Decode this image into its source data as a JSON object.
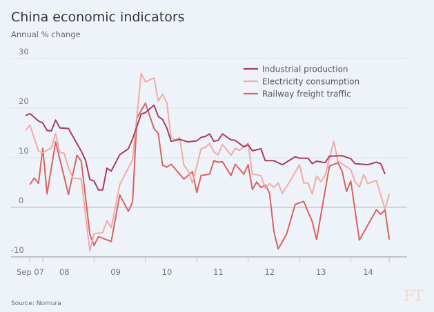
{
  "title": "China economic indicators",
  "subtitle": "Annual % change",
  "source": "Source: Nomura",
  "logo": "FT",
  "colors": {
    "background": "#eef3f9",
    "industrial": "#a83c5e",
    "electricity": "#f2aaa6",
    "railway": "#d9625f",
    "grid": "#c8c8c8",
    "axis": "#c2c2c2"
  },
  "chart_data": {
    "type": "line",
    "title": "China economic indicators",
    "ylabel": "Annual % change",
    "ylim": [
      -10,
      30
    ],
    "yticks": [
      {
        "value": 30,
        "label": "30"
      },
      {
        "value": 20,
        "label": "20"
      },
      {
        "value": 10,
        "label": "10"
      },
      {
        "value": 0,
        "label": "0"
      },
      {
        "value": -10,
        "label": "-10"
      }
    ],
    "xlim": [
      "2007-08",
      "2014-12"
    ],
    "xticks": [
      "2007-10",
      "2008-01",
      "2009-01",
      "2010-01",
      "2011-01",
      "2012-01",
      "2013-01",
      "2014-01",
      "2014-10"
    ],
    "xlabels": [
      {
        "date": "2007-10",
        "label": "Sep 07"
      },
      {
        "date": "2008-07",
        "label": "08"
      },
      {
        "date": "2009-07",
        "label": "09"
      },
      {
        "date": "2010-07",
        "label": "10"
      },
      {
        "date": "2011-07",
        "label": "11"
      },
      {
        "date": "2012-07",
        "label": "12"
      },
      {
        "date": "2013-07",
        "label": "13"
      },
      {
        "date": "2014-06",
        "label": "14"
      }
    ],
    "grid": true,
    "legend_position": "top-right",
    "series": [
      {
        "name": "Industrial production",
        "color": "#a83c5e",
        "points": [
          [
            "2007-09",
            18.5
          ],
          [
            "2007-10",
            18.9
          ],
          [
            "2007-12",
            17.4
          ],
          [
            "2008-01",
            17.0
          ],
          [
            "2008-02",
            15.5
          ],
          [
            "2008-03",
            15.4
          ],
          [
            "2008-04",
            17.6
          ],
          [
            "2008-05",
            16.0
          ],
          [
            "2008-07",
            15.9
          ],
          [
            "2008-10",
            11.3
          ],
          [
            "2008-11",
            9.5
          ],
          [
            "2008-12",
            5.6
          ],
          [
            "2009-01",
            5.3
          ],
          [
            "2009-02",
            3.5
          ],
          [
            "2009-03",
            3.5
          ],
          [
            "2009-04",
            7.9
          ],
          [
            "2009-05",
            7.3
          ],
          [
            "2009-07",
            10.6
          ],
          [
            "2009-09",
            11.8
          ],
          [
            "2009-10",
            13.8
          ],
          [
            "2009-12",
            18.8
          ],
          [
            "2010-01",
            19.1
          ],
          [
            "2010-03",
            20.6
          ],
          [
            "2010-04",
            18.3
          ],
          [
            "2010-05",
            17.7
          ],
          [
            "2010-06",
            16.0
          ],
          [
            "2010-07",
            13.3
          ],
          [
            "2010-09",
            13.7
          ],
          [
            "2010-11",
            13.2
          ],
          [
            "2011-01",
            13.4
          ],
          [
            "2011-02",
            14.1
          ],
          [
            "2011-03",
            14.3
          ],
          [
            "2011-04",
            14.8
          ],
          [
            "2011-05",
            13.3
          ],
          [
            "2011-06",
            13.5
          ],
          [
            "2011-07",
            14.8
          ],
          [
            "2011-09",
            13.6
          ],
          [
            "2011-10",
            13.5
          ],
          [
            "2011-12",
            12.2
          ],
          [
            "2012-01",
            12.6
          ],
          [
            "2012-02",
            11.4
          ],
          [
            "2012-04",
            11.8
          ],
          [
            "2012-05",
            9.4
          ],
          [
            "2012-07",
            9.4
          ],
          [
            "2012-09",
            8.6
          ],
          [
            "2012-12",
            10.2
          ],
          [
            "2013-01",
            9.9
          ],
          [
            "2013-03",
            9.9
          ],
          [
            "2013-04",
            8.8
          ],
          [
            "2013-05",
            9.3
          ],
          [
            "2013-07",
            9.0
          ],
          [
            "2013-08",
            10.3
          ],
          [
            "2013-11",
            10.4
          ],
          [
            "2014-01",
            9.8
          ],
          [
            "2014-02",
            8.8
          ],
          [
            "2014-05",
            8.6
          ],
          [
            "2014-07",
            9.1
          ],
          [
            "2014-08",
            8.8
          ],
          [
            "2014-09",
            6.7
          ]
        ]
      },
      {
        "name": "Electricity consumption",
        "color": "#f2aaa6",
        "points": [
          [
            "2007-09",
            15.5
          ],
          [
            "2007-10",
            16.6
          ],
          [
            "2007-12",
            11.3
          ],
          [
            "2008-01",
            11.0
          ],
          [
            "2008-03",
            12.0
          ],
          [
            "2008-04",
            14.9
          ],
          [
            "2008-05",
            11.1
          ],
          [
            "2008-06",
            10.9
          ],
          [
            "2008-07",
            8.0
          ],
          [
            "2008-08",
            5.9
          ],
          [
            "2008-10",
            5.7
          ],
          [
            "2008-12",
            -8.8
          ],
          [
            "2009-01",
            -5.3
          ],
          [
            "2009-03",
            -5.1
          ],
          [
            "2009-04",
            -2.7
          ],
          [
            "2009-05",
            -4.1
          ],
          [
            "2009-07",
            4.6
          ],
          [
            "2009-10",
            9.6
          ],
          [
            "2009-12",
            27.0
          ],
          [
            "2010-01",
            25.3
          ],
          [
            "2010-03",
            26.1
          ],
          [
            "2010-04",
            21.4
          ],
          [
            "2010-05",
            22.8
          ],
          [
            "2010-06",
            21.1
          ],
          [
            "2010-07",
            14.0
          ],
          [
            "2010-08",
            13.6
          ],
          [
            "2010-09",
            14.1
          ],
          [
            "2010-10",
            8.5
          ],
          [
            "2010-11",
            7.3
          ],
          [
            "2010-12",
            4.9
          ],
          [
            "2011-02",
            11.8
          ],
          [
            "2011-03",
            12.1
          ],
          [
            "2011-04",
            12.9
          ],
          [
            "2011-05",
            11.2
          ],
          [
            "2011-06",
            10.6
          ],
          [
            "2011-07",
            12.7
          ],
          [
            "2011-09",
            10.5
          ],
          [
            "2011-10",
            11.9
          ],
          [
            "2011-11",
            11.5
          ],
          [
            "2012-01",
            13.0
          ],
          [
            "2012-02",
            6.7
          ],
          [
            "2012-04",
            6.4
          ],
          [
            "2012-05",
            3.8
          ],
          [
            "2012-06",
            4.8
          ],
          [
            "2012-07",
            4.0
          ],
          [
            "2012-08",
            4.9
          ],
          [
            "2012-09",
            2.8
          ],
          [
            "2012-11",
            5.6
          ],
          [
            "2013-01",
            8.6
          ],
          [
            "2013-02",
            4.9
          ],
          [
            "2013-03",
            4.9
          ],
          [
            "2013-04",
            2.7
          ],
          [
            "2013-05",
            6.3
          ],
          [
            "2013-06",
            5.2
          ],
          [
            "2013-07",
            6.4
          ],
          [
            "2013-09",
            13.3
          ],
          [
            "2013-10",
            9.3
          ],
          [
            "2014-01",
            7.6
          ],
          [
            "2014-02",
            5.2
          ],
          [
            "2014-03",
            4.1
          ],
          [
            "2014-04",
            6.6
          ],
          [
            "2014-05",
            4.8
          ],
          [
            "2014-07",
            5.4
          ],
          [
            "2014-09",
            -0.4
          ],
          [
            "2014-10",
            2.7
          ]
        ]
      },
      {
        "name": "Railway freight traffic",
        "color": "#d9625f",
        "points": [
          [
            "2007-10",
            4.6
          ],
          [
            "2007-11",
            5.9
          ],
          [
            "2007-12",
            4.8
          ],
          [
            "2008-01",
            11.9
          ],
          [
            "2008-02",
            2.7
          ],
          [
            "2008-04",
            13.2
          ],
          [
            "2008-07",
            2.6
          ],
          [
            "2008-09",
            10.5
          ],
          [
            "2008-10",
            9.3
          ],
          [
            "2008-12",
            -5.4
          ],
          [
            "2009-01",
            -7.7
          ],
          [
            "2009-02",
            -5.9
          ],
          [
            "2009-05",
            -6.9
          ],
          [
            "2009-07",
            2.5
          ],
          [
            "2009-09",
            -0.8
          ],
          [
            "2009-10",
            1.1
          ],
          [
            "2009-11",
            18.0
          ],
          [
            "2010-01",
            21.0
          ],
          [
            "2010-03",
            15.9
          ],
          [
            "2010-04",
            14.9
          ],
          [
            "2010-05",
            8.5
          ],
          [
            "2010-06",
            8.1
          ],
          [
            "2010-07",
            8.7
          ],
          [
            "2010-10",
            5.7
          ],
          [
            "2010-12",
            7.2
          ],
          [
            "2011-01",
            3.0
          ],
          [
            "2011-02",
            6.4
          ],
          [
            "2011-04",
            6.7
          ],
          [
            "2011-05",
            9.4
          ],
          [
            "2011-06",
            9.1
          ],
          [
            "2011-07",
            9.2
          ],
          [
            "2011-09",
            6.4
          ],
          [
            "2011-10",
            8.7
          ],
          [
            "2011-12",
            6.7
          ],
          [
            "2012-01",
            8.6
          ],
          [
            "2012-02",
            3.6
          ],
          [
            "2012-03",
            5.1
          ],
          [
            "2012-04",
            4.0
          ],
          [
            "2012-05",
            4.5
          ],
          [
            "2012-06",
            2.9
          ],
          [
            "2012-07",
            -4.7
          ],
          [
            "2012-08",
            -8.4
          ],
          [
            "2012-09",
            -6.9
          ],
          [
            "2012-10",
            -5.4
          ],
          [
            "2012-12",
            0.6
          ],
          [
            "2013-02",
            1.2
          ],
          [
            "2013-03",
            -0.9
          ],
          [
            "2013-04",
            -2.9
          ],
          [
            "2013-05",
            -6.5
          ],
          [
            "2013-08",
            8.3
          ],
          [
            "2013-10",
            9.0
          ],
          [
            "2013-11",
            7.2
          ],
          [
            "2013-12",
            3.2
          ],
          [
            "2014-01",
            5.3
          ],
          [
            "2014-03",
            -6.6
          ],
          [
            "2014-07",
            -0.5
          ],
          [
            "2014-08",
            -1.4
          ],
          [
            "2014-09",
            -0.5
          ],
          [
            "2014-10",
            -6.5
          ]
        ]
      }
    ]
  }
}
